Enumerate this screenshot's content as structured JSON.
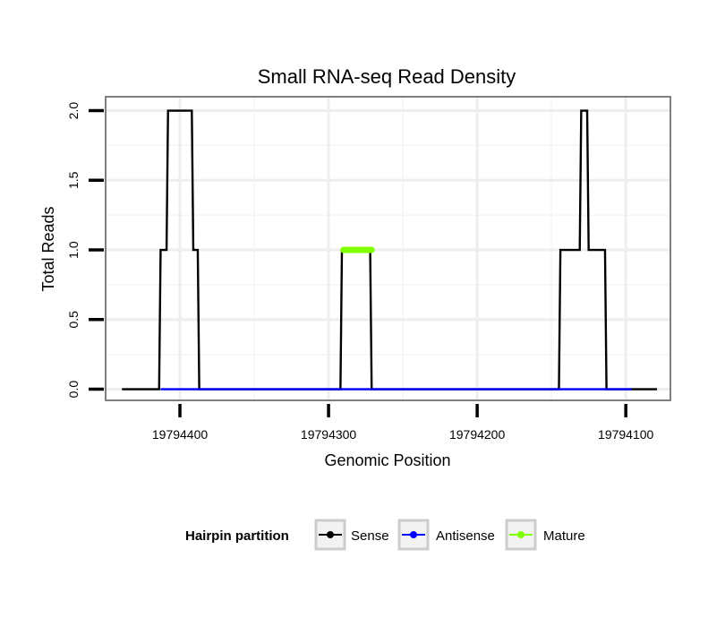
{
  "chart_data": {
    "type": "line",
    "title": "Small RNA-seq Read Density",
    "xlabel": "Genomic Position",
    "ylabel": "Total Reads",
    "xlim": [
      19794450,
      19794070
    ],
    "ylim": [
      -0.08,
      2.1
    ],
    "x_reversed": true,
    "x_ticks": [
      19794400,
      19794300,
      19794200,
      19794100
    ],
    "x_tick_labels": [
      "19794400",
      "19794300",
      "19794200",
      "19794100"
    ],
    "y_ticks": [
      0.0,
      0.5,
      1.0,
      1.5,
      2.0
    ],
    "y_tick_labels": [
      "0.0",
      "0.5",
      "1.0",
      "1.5",
      "2.0"
    ],
    "grid": true,
    "legend": {
      "title": "Hairpin partition",
      "placement": "bottom",
      "entries": [
        "Sense",
        "Antisense",
        "Mature"
      ]
    },
    "series": [
      {
        "name": "Sense",
        "color": "#000000",
        "x": [
          19794439,
          19794414,
          19794413,
          19794409,
          19794408,
          19794392,
          19794391,
          19794388,
          19794387,
          19794292,
          19794291,
          19794272,
          19794271,
          19794145,
          19794144,
          19794131,
          19794130,
          19794126,
          19794125,
          19794114,
          19794113,
          19794097,
          19794096,
          19794079
        ],
        "values": [
          0,
          0,
          1,
          1,
          2,
          2,
          1,
          1,
          0,
          0,
          1,
          1,
          0,
          0,
          1,
          1,
          2,
          2,
          1,
          1,
          0,
          0,
          0,
          0
        ]
      },
      {
        "name": "Antisense",
        "color": "#0000ff",
        "x": [
          19794413,
          19794388,
          19794291,
          19794271,
          19794144,
          19794096
        ],
        "values": [
          0,
          0,
          0,
          0,
          0,
          0
        ]
      },
      {
        "name": "Mature",
        "color": "#7fff00",
        "x": [
          19794290,
          19794271
        ],
        "values": [
          1,
          1
        ]
      }
    ]
  }
}
